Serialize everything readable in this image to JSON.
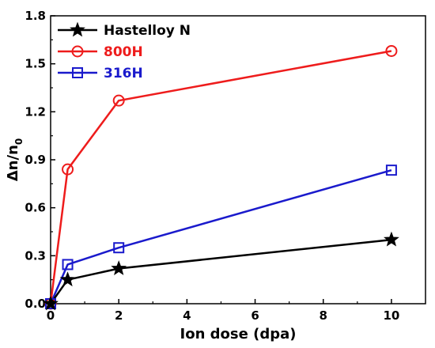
{
  "chart_data": {
    "type": "line",
    "xlabel": "Ion dose (dpa)",
    "ylabel_main": "Δn/n",
    "ylabel_sub": "0",
    "xlim": [
      0,
      11
    ],
    "ylim": [
      0,
      1.8
    ],
    "x_ticks": [
      "0",
      "2",
      "4",
      "6",
      "8",
      "10"
    ],
    "y_ticks": [
      "0.0",
      "0.3",
      "0.6",
      "0.9",
      "1.2",
      "1.5",
      "1.8"
    ],
    "x_tick_values": [
      0,
      2,
      4,
      6,
      8,
      10
    ],
    "y_tick_values": [
      0.0,
      0.3,
      0.6,
      0.9,
      1.2,
      1.5,
      1.8
    ],
    "legend_position": "top-left",
    "grid": false,
    "series": [
      {
        "name": "Hastelloy N",
        "color": "#000000",
        "marker": "star",
        "x": [
          0,
          0.5,
          2,
          10
        ],
        "y": [
          0,
          0.15,
          0.22,
          0.4
        ]
      },
      {
        "name": "800H",
        "color": "#ee1c1c",
        "marker": "open-circle",
        "x": [
          0,
          0.5,
          2,
          10
        ],
        "y": [
          0,
          0.84,
          1.27,
          1.58
        ]
      },
      {
        "name": "316H",
        "color": "#1a1acc",
        "marker": "open-square",
        "x": [
          0,
          0.5,
          2,
          10
        ],
        "y": [
          0,
          0.245,
          0.35,
          0.835
        ]
      }
    ]
  }
}
